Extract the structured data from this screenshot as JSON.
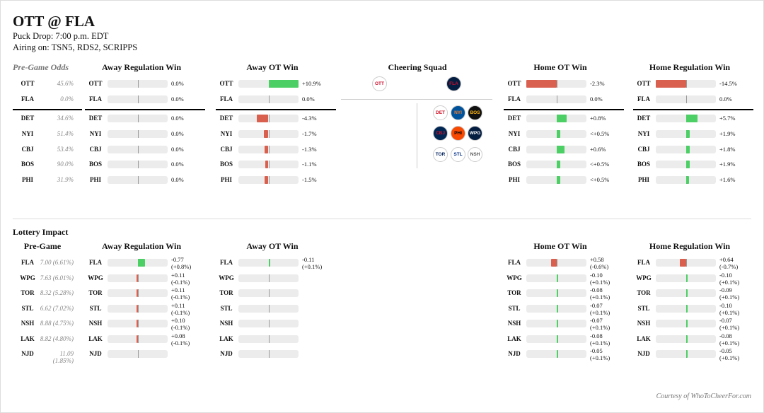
{
  "game": {
    "title": "OTT @ FLA",
    "puck_drop": "Puck Drop: 7:00 p.m. EDT",
    "airing": "Airing on: TSN5, RDS2, SCRIPPS"
  },
  "colors": {
    "positive": "#4cd065",
    "negative": "#d9604f",
    "track": "#ececec"
  },
  "pregame": {
    "odds_header": "Pre-Game Odds",
    "cheering_header": "Cheering Squad",
    "columns": [
      {
        "label": "Away Regulation Win",
        "values": [
          {
            "text": "0.0%",
            "v": 0
          },
          {
            "text": "0.0%",
            "v": 0
          },
          {
            "text": "0.0%",
            "v": 0
          },
          {
            "text": "0.0%",
            "v": 0
          },
          {
            "text": "0.0%",
            "v": 0
          },
          {
            "text": "0.0%",
            "v": 0
          },
          {
            "text": "0.0%",
            "v": 0
          }
        ]
      },
      {
        "label": "Away OT Win",
        "values": [
          {
            "text": "+10.9%",
            "v": 10.9
          },
          {
            "text": "0.0%",
            "v": 0
          },
          {
            "text": "-4.3%",
            "v": -4.3
          },
          {
            "text": "-1.7%",
            "v": -1.7
          },
          {
            "text": "-1.3%",
            "v": -1.3
          },
          {
            "text": "-1.1%",
            "v": -1.1
          },
          {
            "text": "-1.5%",
            "v": -1.5
          }
        ]
      },
      {
        "label": "Home OT Win",
        "values": [
          {
            "text": "-2.3%",
            "v": -2.3
          },
          {
            "text": "0.0%",
            "v": 0
          },
          {
            "text": "+0.8%",
            "v": 0.8
          },
          {
            "text": "<+0.5%",
            "v": 0.3
          },
          {
            "text": "+0.6%",
            "v": 0.6
          },
          {
            "text": "<+0.5%",
            "v": 0.3
          },
          {
            "text": "<+0.5%",
            "v": 0.3
          }
        ]
      },
      {
        "label": "Home Regulation Win",
        "values": [
          {
            "text": "-14.5%",
            "v": -14.5
          },
          {
            "text": "0.0%",
            "v": 0
          },
          {
            "text": "+5.7%",
            "v": 5.7
          },
          {
            "text": "+1.9%",
            "v": 1.9
          },
          {
            "text": "+1.8%",
            "v": 1.8
          },
          {
            "text": "+1.9%",
            "v": 1.9
          },
          {
            "text": "+1.6%",
            "v": 1.6
          }
        ]
      }
    ],
    "rows": [
      {
        "team": "OTT",
        "odds": "45.6%"
      },
      {
        "team": "FLA",
        "odds": "0.0%"
      },
      {
        "team": "DET",
        "odds": "34.6%"
      },
      {
        "team": "NYI",
        "odds": "51.4%"
      },
      {
        "team": "CBJ",
        "odds": "53.4%"
      },
      {
        "team": "BOS",
        "odds": "90.0%"
      },
      {
        "team": "PHI",
        "odds": "31.9%"
      }
    ],
    "squad_main": [
      {
        "name": "senators-logo",
        "abbr": "OTT",
        "bg": "#fff",
        "fg": "#c8102e"
      },
      {
        "name": "panthers-logo",
        "abbr": "FLA",
        "bg": "#041e42",
        "fg": "#c8102e"
      }
    ],
    "squad_others": [
      {
        "name": "red-wings-logo",
        "abbr": "DET",
        "bg": "#fff",
        "fg": "#ce1126"
      },
      {
        "name": "islanders-logo",
        "abbr": "NYI",
        "bg": "#00539b",
        "fg": "#f47d30"
      },
      {
        "name": "bruins-logo",
        "abbr": "BOS",
        "bg": "#111",
        "fg": "#fcb514"
      },
      {
        "name": "blue-jackets-logo",
        "abbr": "CBJ",
        "bg": "#002654",
        "fg": "#ce1126"
      },
      {
        "name": "flyers-logo",
        "abbr": "PHI",
        "bg": "#f74902",
        "fg": "#000"
      },
      {
        "name": "jets-logo",
        "abbr": "WPG",
        "bg": "#041e42",
        "fg": "#fff"
      },
      {
        "name": "maple-leafs-logo",
        "abbr": "TOR",
        "bg": "#fff",
        "fg": "#00205b"
      },
      {
        "name": "blues-logo",
        "abbr": "STL",
        "bg": "#fff",
        "fg": "#002f87"
      },
      {
        "name": "predators-logo",
        "abbr": "NSH",
        "bg": "#fff",
        "fg": "#555"
      }
    ]
  },
  "lottery": {
    "section_title": "Lottery Impact",
    "pregame_header": "Pre-Game",
    "rows": [
      {
        "team": "FLA",
        "odds": "7.00 (6.61%)"
      },
      {
        "team": "WPG",
        "odds": "7.63 (6.01%)"
      },
      {
        "team": "TOR",
        "odds": "8.32 (5.28%)"
      },
      {
        "team": "STL",
        "odds": "6.62 (7.02%)"
      },
      {
        "team": "NSH",
        "odds": "8.88 (4.75%)"
      },
      {
        "team": "LAK",
        "odds": "8.82 (4.80%)"
      },
      {
        "team": "NJD",
        "odds": "11.09 (1.85%)"
      }
    ],
    "columns": [
      {
        "label": "Away Regulation Win",
        "values": [
          {
            "l1": "-0.77",
            "l2": "(+0.8%)",
            "v": 0.8
          },
          {
            "l1": "+0.11",
            "l2": "(-0.1%)",
            "v": -0.1
          },
          {
            "l1": "+0.11",
            "l2": "(-0.1%)",
            "v": -0.1
          },
          {
            "l1": "+0.11",
            "l2": "(-0.1%)",
            "v": -0.1
          },
          {
            "l1": "+0.10",
            "l2": "(-0.1%)",
            "v": -0.1
          },
          {
            "l1": "+0.08",
            "l2": "(-0.1%)",
            "v": -0.1
          },
          {
            "l1": "",
            "l2": "",
            "v": 0
          }
        ]
      },
      {
        "label": "Away OT Win",
        "values": [
          {
            "l1": "-0.11",
            "l2": "(+0.1%)",
            "v": 0.1
          },
          {
            "l1": "",
            "l2": "",
            "v": 0
          },
          {
            "l1": "",
            "l2": "",
            "v": 0
          },
          {
            "l1": "",
            "l2": "",
            "v": 0
          },
          {
            "l1": "",
            "l2": "",
            "v": 0
          },
          {
            "l1": "",
            "l2": "",
            "v": 0
          },
          {
            "l1": "",
            "l2": "",
            "v": 0
          }
        ]
      },
      {
        "label": "Home OT Win",
        "values": [
          {
            "l1": "+0.58",
            "l2": "(-0.6%)",
            "v": -0.6
          },
          {
            "l1": "-0.10",
            "l2": "(+0.1%)",
            "v": 0.1
          },
          {
            "l1": "-0.08",
            "l2": "(+0.1%)",
            "v": 0.1
          },
          {
            "l1": "-0.07",
            "l2": "(+0.1%)",
            "v": 0.1
          },
          {
            "l1": "-0.07",
            "l2": "(+0.1%)",
            "v": 0.1
          },
          {
            "l1": "-0.08",
            "l2": "(+0.1%)",
            "v": 0.1
          },
          {
            "l1": "-0.05",
            "l2": "(+0.1%)",
            "v": 0.1
          }
        ]
      },
      {
        "label": "Home Regulation Win",
        "values": [
          {
            "l1": "+0.64",
            "l2": "(-0.7%)",
            "v": -0.7
          },
          {
            "l1": "-0.10",
            "l2": "(+0.1%)",
            "v": 0.1
          },
          {
            "l1": "-0.09",
            "l2": "(+0.1%)",
            "v": 0.1
          },
          {
            "l1": "-0.10",
            "l2": "(+0.1%)",
            "v": 0.1
          },
          {
            "l1": "-0.07",
            "l2": "(+0.1%)",
            "v": 0.1
          },
          {
            "l1": "-0.08",
            "l2": "(+0.1%)",
            "v": 0.1
          },
          {
            "l1": "-0.05",
            "l2": "(+0.1%)",
            "v": 0.1
          }
        ]
      }
    ]
  },
  "footer": "Courtesy of WhoToCheerFor.com"
}
